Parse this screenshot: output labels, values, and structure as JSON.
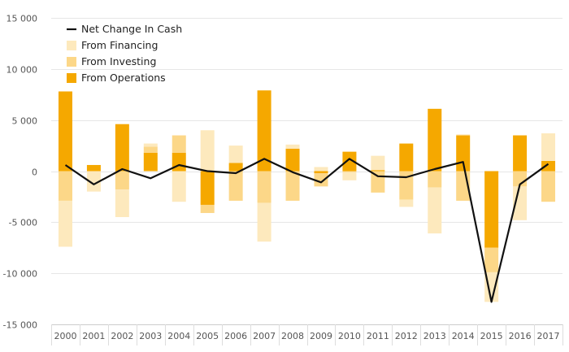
{
  "chart_data": {
    "type": "bar",
    "stacked": true,
    "categories": [
      "2000",
      "2001",
      "2002",
      "2003",
      "2004",
      "2005",
      "2006",
      "2007",
      "2008",
      "2009",
      "2010",
      "2011",
      "2012",
      "2013",
      "2014",
      "2015",
      "2016",
      "2017"
    ],
    "series": [
      {
        "name": "From Operations",
        "kind": "bar",
        "color": "#f5a800",
        "values": [
          7800,
          600,
          4600,
          1800,
          1800,
          -3300,
          800,
          7900,
          2200,
          -200,
          1900,
          100,
          2700,
          6100,
          3500,
          -7500,
          3500,
          1000
        ]
      },
      {
        "name": "From Investing",
        "kind": "bar",
        "color": "#fcd788",
        "values": [
          -2900,
          0,
          -1800,
          600,
          1700,
          -800,
          -2900,
          -3100,
          -2900,
          -1300,
          -100,
          -2100,
          -2800,
          -1600,
          -2900,
          -2400,
          -1500,
          -3000
        ]
      },
      {
        "name": "From Financing",
        "kind": "bar",
        "color": "#fde9bd",
        "values": [
          -4500,
          -2000,
          -2700,
          300,
          -3000,
          4000,
          1700,
          -3800,
          400,
          400,
          -800,
          1400,
          -700,
          -4500,
          100,
          -2900,
          -3300,
          2700
        ]
      },
      {
        "name": "Net Change In Cash",
        "kind": "line",
        "color": "#111111",
        "values": [
          600,
          -1300,
          200,
          -700,
          600,
          0,
          -200,
          1200,
          -100,
          -1100,
          1200,
          -500,
          -600,
          200,
          900,
          -12800,
          -1300,
          700
        ]
      }
    ],
    "legend_order": [
      "Net Change In Cash",
      "From Financing",
      "From Investing",
      "From Operations"
    ],
    "yticks": [
      15000,
      10000,
      5000,
      0,
      -5000,
      -10000,
      -15000
    ],
    "ytick_labels": [
      "15 000",
      "10 000",
      "5 000",
      "0",
      "-5 000",
      "-10 000",
      "-15 000"
    ],
    "ylim": [
      -15000,
      15000
    ],
    "legend_position": "top-left",
    "grid": true,
    "title": "",
    "xlabel": "",
    "ylabel": ""
  }
}
